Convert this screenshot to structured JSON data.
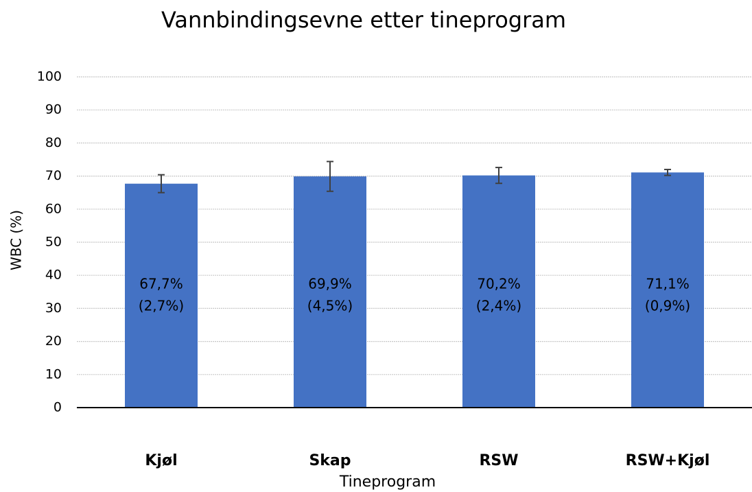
{
  "chart_data": {
    "type": "bar",
    "title": "Vannbindingsevne etter tineprogram",
    "x_label": "Tineprogram",
    "y_label": "WBC (%)",
    "categories": [
      "Kjøl",
      "Skap",
      "RSW",
      "RSW+Kjøl"
    ],
    "values": [
      67.7,
      69.9,
      70.2,
      71.1
    ],
    "value_labels": [
      "67,7%",
      "69,9%",
      "70,2%",
      "71,1%"
    ],
    "errors": [
      2.7,
      4.5,
      2.4,
      0.9
    ],
    "error_labels": [
      "(2,7%)",
      "(4,5%)",
      "(2,4%)",
      "(0,9%)"
    ],
    "color": "#4472c4",
    "ylim": [
      0,
      100
    ],
    "yticks": [
      0,
      10,
      20,
      30,
      40,
      50,
      60,
      70,
      80,
      90,
      100
    ],
    "grid": true
  }
}
